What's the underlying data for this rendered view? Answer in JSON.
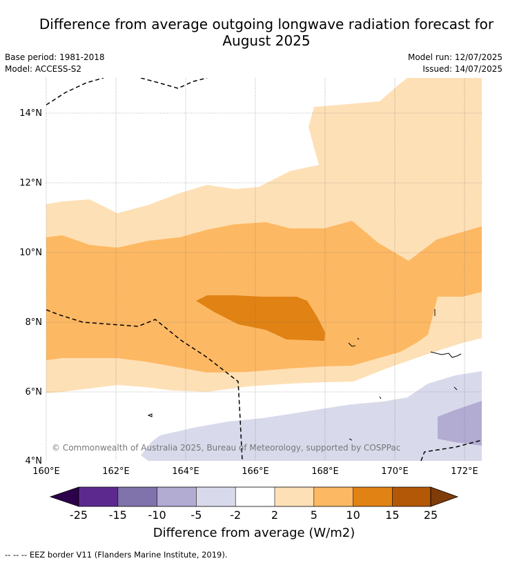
{
  "title_line1": "Difference from average outgoing longwave radiation forecast for",
  "title_line2": "August 2025",
  "base_period": "Base period: 1981-2018",
  "model": "Model: ACCESS-S2",
  "model_run": "Model run: 12/07/2025",
  "issued": "Issued: 14/07/2025",
  "copyright": "© Commonwealth of Australia 2025, Bureau of Meteorology, supported by COSPPac",
  "map": {
    "lon_ticks": [
      "160°E",
      "162°E",
      "164°E",
      "166°E",
      "168°E",
      "170°E",
      "172°E"
    ],
    "lat_ticks": [
      "14°N",
      "12°N",
      "10°N",
      "8°N",
      "6°N",
      "4°N"
    ],
    "lon_range": [
      160,
      172.5
    ],
    "lat_range": [
      4,
      15.1
    ]
  },
  "colorbar": {
    "label": "Difference from average (W/m2)",
    "ticks": [
      "-25",
      "-15",
      "-10",
      "-5",
      "-2",
      "2",
      "5",
      "10",
      "15",
      "25"
    ],
    "colors": {
      "below_-25": "#2d004b",
      "-25_-15": "#5c2a8f",
      "-15_-10": "#8073ac",
      "-10_-5": "#b2abd2",
      "-5_-2": "#d8daeb",
      "-2_2": "#ffffff",
      "2_5": "#fee0b6",
      "5_10": "#fdb863",
      "10_15": "#e08214",
      "15_25": "#b35806",
      "above_25": "#7f3b08"
    }
  },
  "footer": "--  --  -- EEZ border V11 (Flanders Marine Institute, 2019)."
}
